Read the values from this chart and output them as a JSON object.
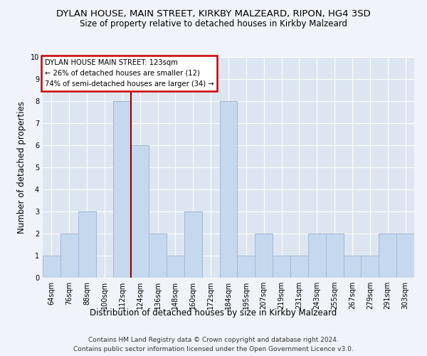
{
  "title": "DYLAN HOUSE, MAIN STREET, KIRKBY MALZEARD, RIPON, HG4 3SD",
  "subtitle": "Size of property relative to detached houses in Kirkby Malzeard",
  "xlabel": "Distribution of detached houses by size in Kirkby Malzeard",
  "ylabel": "Number of detached properties",
  "categories": [
    "64sqm",
    "76sqm",
    "88sqm",
    "100sqm",
    "112sqm",
    "124sqm",
    "136sqm",
    "148sqm",
    "160sqm",
    "172sqm",
    "184sqm",
    "195sqm",
    "207sqm",
    "219sqm",
    "231sqm",
    "243sqm",
    "255sqm",
    "267sqm",
    "279sqm",
    "291sqm",
    "303sqm"
  ],
  "values": [
    1,
    2,
    3,
    0,
    8,
    6,
    2,
    1,
    3,
    0,
    8,
    1,
    2,
    1,
    1,
    2,
    2,
    1,
    1,
    2,
    2
  ],
  "bar_color": "#c5d8ed",
  "bar_edgecolor": "#a0b8d8",
  "highlight_index": 5,
  "highlight_line_color": "#8b0000",
  "annotation_text": "DYLAN HOUSE MAIN STREET: 123sqm\n← 26% of detached houses are smaller (12)\n74% of semi-detached houses are larger (34) →",
  "annotation_box_color": "#ffffff",
  "annotation_box_edgecolor": "#cc0000",
  "ylim": [
    0,
    10
  ],
  "yticks": [
    0,
    1,
    2,
    3,
    4,
    5,
    6,
    7,
    8,
    9,
    10
  ],
  "background_color": "#dde6f0",
  "grid_color": "#ffffff",
  "footer_line1": "Contains HM Land Registry data © Crown copyright and database right 2024.",
  "footer_line2": "Contains public sector information licensed under the Open Government Licence v3.0.",
  "title_fontsize": 9.5,
  "subtitle_fontsize": 8.5,
  "xlabel_fontsize": 8.5,
  "ylabel_fontsize": 8.5,
  "tick_fontsize": 7,
  "footer_fontsize": 6.5,
  "fig_bg_color": "#f0f4fa"
}
